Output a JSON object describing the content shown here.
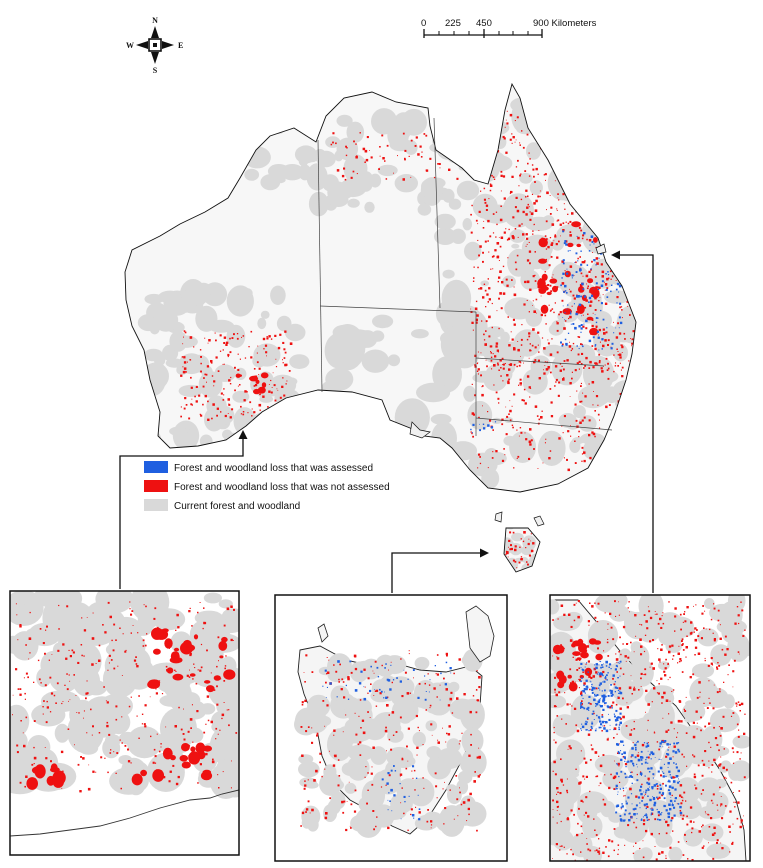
{
  "compass": {
    "north": "N",
    "south": "S",
    "east": "E",
    "west": "W"
  },
  "scale_bar": {
    "ticks": [
      "0",
      "225",
      "450",
      "900 Kilometers"
    ]
  },
  "legend": {
    "items": [
      {
        "label": "Forest and woodland loss that was assessed",
        "color": "#1f5fe0"
      },
      {
        "label": "Forest and woodland loss that was not assessed",
        "color": "#ee1111"
      },
      {
        "label": "Current forest and woodland",
        "color": "#d9d9d9"
      }
    ]
  },
  "colors": {
    "coastline": "#111111",
    "state_border": "#444444",
    "land_background": "#f7f7f7",
    "forest": "#d9d9d9",
    "loss_assessed": "#1f5fe0",
    "loss_not_assessed": "#ee1111"
  },
  "insets": [
    {
      "name": "south-west-wa-inset"
    },
    {
      "name": "tasmania-inset"
    },
    {
      "name": "south-east-queensland-inset"
    }
  ]
}
